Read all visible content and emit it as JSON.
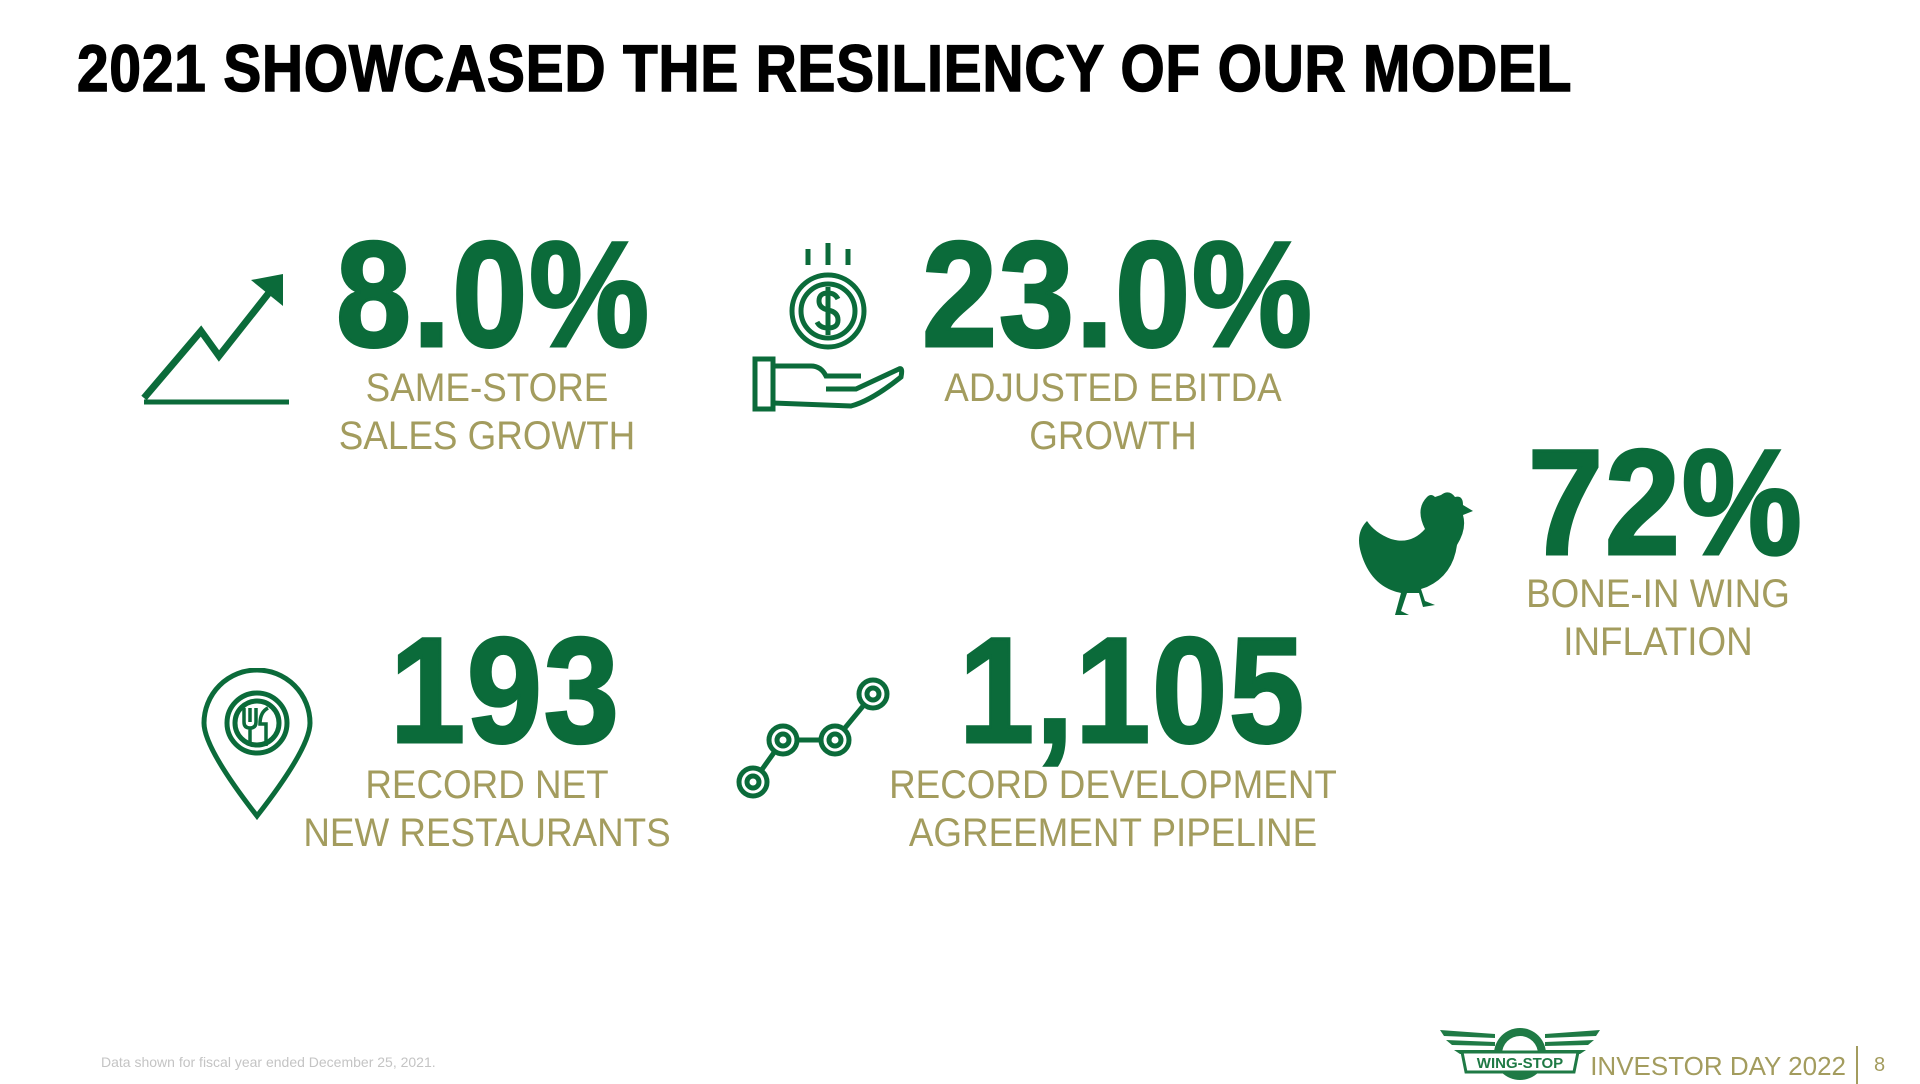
{
  "title": "2021 SHOWCASED THE RESILIENCY OF OUR MODEL",
  "stats": [
    {
      "value": "8.0%",
      "label_line1": "SAME-STORE",
      "label_line2": "SALES GROWTH",
      "icon": "trend-up-chart-icon"
    },
    {
      "value": "23.0%",
      "label_line1": "ADJUSTED EBITDA",
      "label_line2": "GROWTH",
      "icon": "hand-dollar-coin-icon"
    },
    {
      "value": "72%",
      "label_line1": "BONE-IN WING",
      "label_line2": "INFLATION",
      "icon": "chicken-icon"
    },
    {
      "value": "193",
      "label_line1": "RECORD NET",
      "label_line2": "NEW RESTAURANTS",
      "icon": "restaurant-location-pin-icon"
    },
    {
      "value": "1,105",
      "label_line1": "RECORD DEVELOPMENT",
      "label_line2": "AGREEMENT PIPELINE",
      "icon": "pipeline-nodes-icon"
    }
  ],
  "footer": {
    "note": "Data shown for fiscal year ended December 25, 2021.",
    "logo_text": "WING-STOP",
    "event": "INVESTOR DAY 2022",
    "page_number": "8"
  },
  "colors": {
    "accent_green": "#0b6b3a",
    "label_gold": "#a39c5e"
  }
}
